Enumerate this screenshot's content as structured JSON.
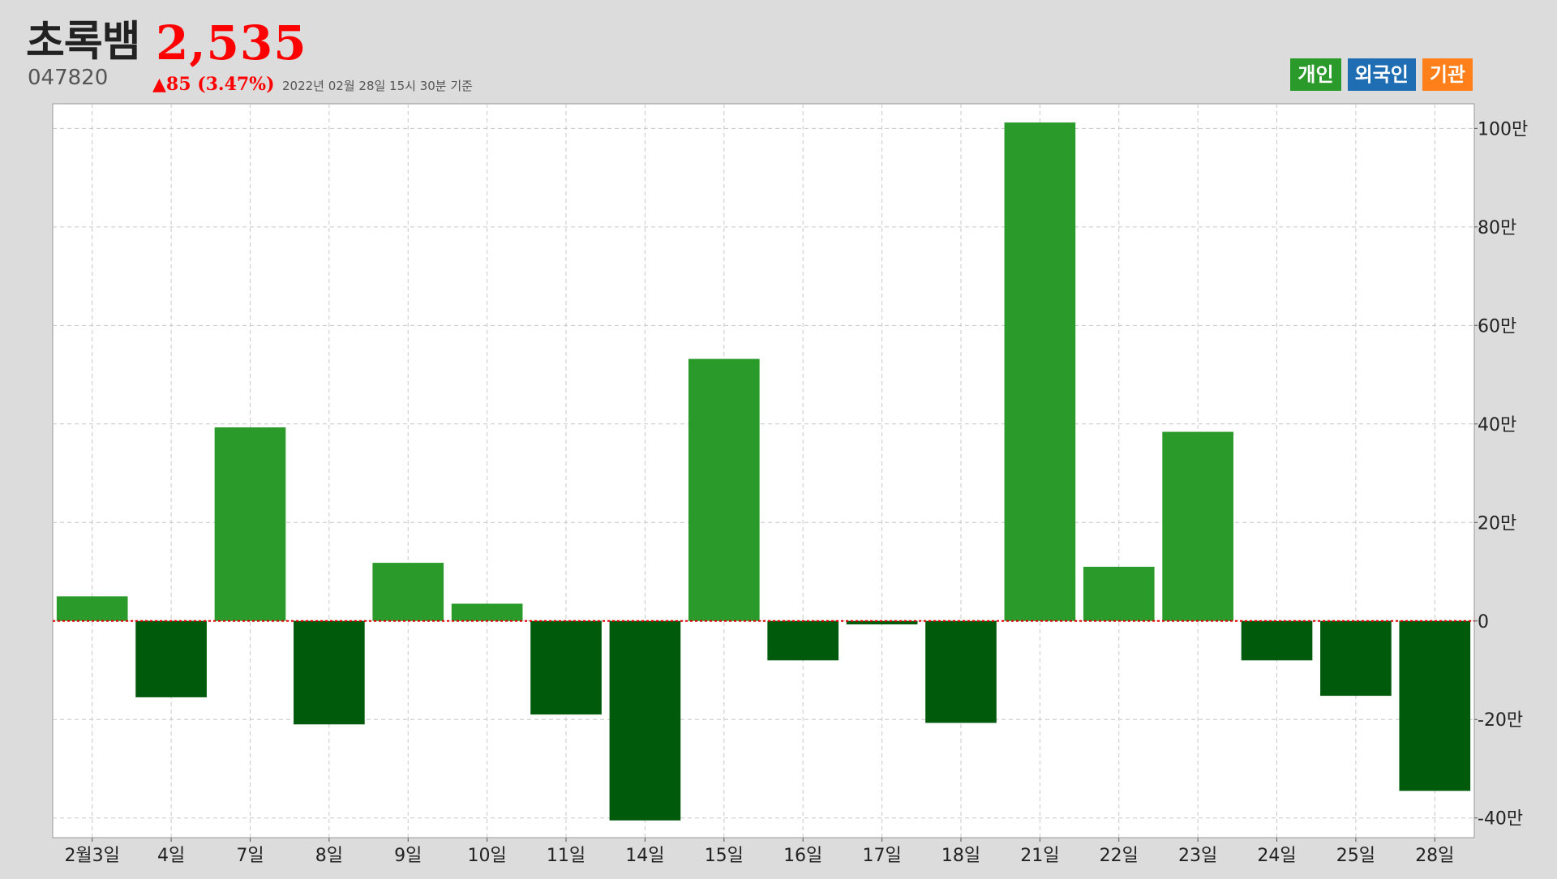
{
  "header": {
    "name": "초록뱀",
    "code": "047820",
    "price": "2,535",
    "change": "▲85 (3.47%)",
    "timestamp": "2022년 02월 28일 15시 30분 기준"
  },
  "colors": {
    "price_up": "#ff0000",
    "individual": "#2a9a2a",
    "foreign": "#1f6eb4",
    "institution": "#ff7f1a",
    "positive_bar": "#2a9a2a",
    "negative_bar": "#005a0b",
    "zero_line": "#e00000"
  },
  "legend": {
    "individual": "개인",
    "foreign": "외국인",
    "institution": "기관"
  },
  "chart_data": {
    "type": "bar",
    "series": [
      {
        "name": "개인",
        "values": [
          50000,
          -155000,
          393000,
          -210000,
          118000,
          35000,
          -190000,
          -405000,
          532000,
          -80000,
          -7000,
          -207000,
          1012000,
          110000,
          384000,
          -80000,
          -152000,
          -345000
        ]
      }
    ],
    "categories": [
      "2월3일",
      "4일",
      "7일",
      "8일",
      "9일",
      "10일",
      "11일",
      "14일",
      "15일",
      "16일",
      "17일",
      "18일",
      "21일",
      "22일",
      "23일",
      "24일",
      "25일",
      "28일"
    ],
    "yticks": [
      {
        "value": 1000000,
        "label": "100만"
      },
      {
        "value": 800000,
        "label": "80만"
      },
      {
        "value": 600000,
        "label": "60만"
      },
      {
        "value": 400000,
        "label": "40만"
      },
      {
        "value": 200000,
        "label": "20만"
      },
      {
        "value": 0,
        "label": "0"
      },
      {
        "value": -200000,
        "label": "-20만"
      },
      {
        "value": -400000,
        "label": "-40만"
      }
    ],
    "ylim": [
      -440000,
      1050000
    ],
    "grid": true,
    "y_axis_position": "right",
    "legend_position": "top-right"
  }
}
